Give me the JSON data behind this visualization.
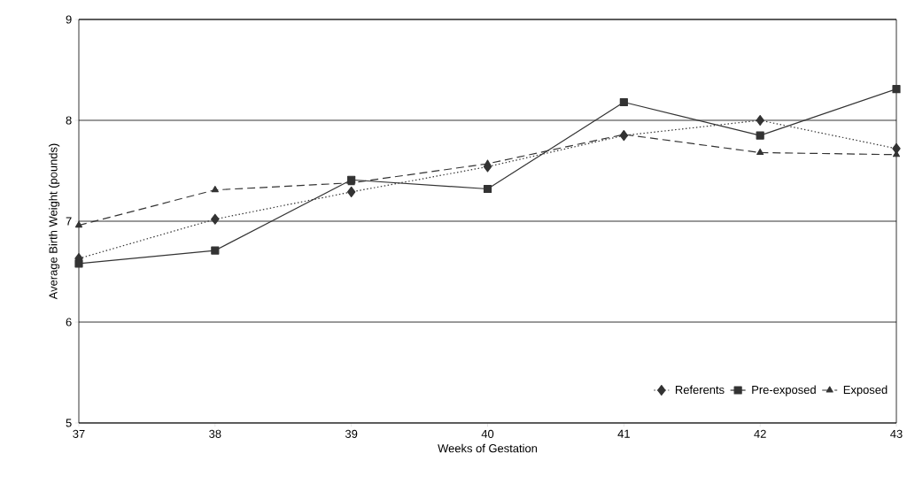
{
  "chart_data": {
    "type": "line",
    "xlabel": "Weeks of Gestation",
    "ylabel": "Average Birth Weight (pounds)",
    "x": [
      37,
      38,
      39,
      40,
      41,
      42,
      43
    ],
    "series": [
      {
        "name": "Referents",
        "color": "#333333",
        "marker": "diamond",
        "line_style": "dotted",
        "values": [
          6.63,
          7.02,
          7.29,
          7.54,
          7.85,
          8.0,
          7.72
        ]
      },
      {
        "name": "Pre-exposed",
        "color": "#333333",
        "marker": "square",
        "line_style": "solid",
        "values": [
          6.58,
          6.71,
          7.41,
          7.32,
          8.18,
          7.85,
          8.31
        ]
      },
      {
        "name": "Exposed",
        "color": "#333333",
        "marker": "triangle",
        "line_style": "dashed",
        "values": [
          6.96,
          7.31,
          7.38,
          7.57,
          7.86,
          7.68,
          7.66
        ]
      }
    ],
    "xlim": [
      37,
      43
    ],
    "ylim": [
      5,
      9
    ],
    "xticks": [
      37,
      38,
      39,
      40,
      41,
      42,
      43
    ],
    "yticks": [
      5,
      6,
      7,
      8,
      9
    ],
    "grid": "y",
    "legend": "bottom right"
  }
}
